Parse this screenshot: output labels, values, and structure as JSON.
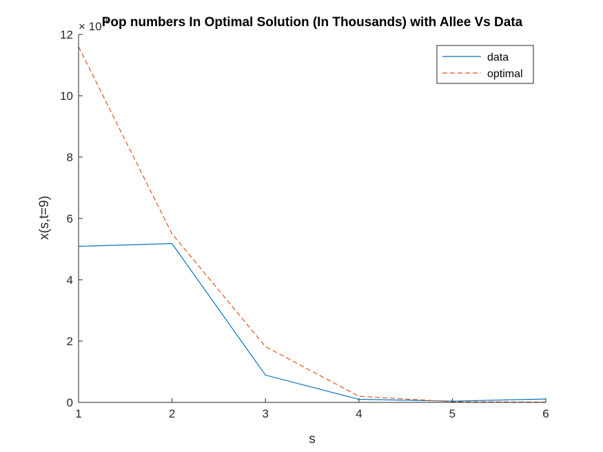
{
  "chart_data": {
    "type": "line",
    "title": "Pop numbers In Optimal Solution (In Thousands) with Allee Vs Data",
    "xlabel": "s",
    "ylabel": "x(s,t=9)",
    "x": [
      1,
      2,
      3,
      4,
      5,
      6
    ],
    "xlim": [
      1,
      6
    ],
    "ylim": [
      0,
      1200000
    ],
    "y_exponent_label": {
      "base": "× 10",
      "power": "5"
    },
    "x_ticks": [
      "1",
      "2",
      "3",
      "4",
      "5",
      "6"
    ],
    "y_ticks": [
      "0",
      "2",
      "4",
      "6",
      "8",
      "10",
      "12"
    ],
    "grid": false,
    "legend_position": "top-right",
    "series": [
      {
        "name": "data",
        "color": "#0072BD",
        "style": "solid",
        "values": [
          509000,
          518000,
          89000,
          10000,
          4000,
          11000
        ]
      },
      {
        "name": "optimal",
        "color": "#D95319",
        "style": "dashed",
        "values": [
          1160000,
          550000,
          182000,
          20000,
          2000,
          1000
        ]
      }
    ]
  }
}
